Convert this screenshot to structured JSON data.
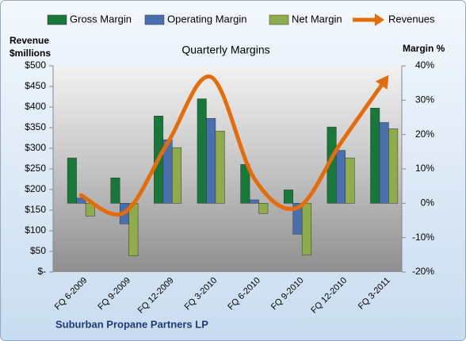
{
  "chart_data": {
    "type": "bar",
    "title": "Quarterly Margins",
    "y_label": [
      "Revenue",
      "$millions"
    ],
    "y2_label": "Margin %",
    "footer": "Suburban Propane Partners LP",
    "categories": [
      "FQ 6-2009",
      "FQ 9-2009",
      "FQ 12-2009",
      "FQ 3-2010",
      "FQ 6-2010",
      "FQ 9-2010",
      "FQ 12-2010",
      "FQ 3-2011"
    ],
    "series": [
      {
        "name": "Gross Margin",
        "color": "#17783a",
        "axis": "y2",
        "values": [
          13.2,
          7.4,
          25.4,
          30.4,
          11.3,
          3.9,
          22.2,
          27.7
        ]
      },
      {
        "name": "Operating Margin",
        "color": "#4a6fae",
        "axis": "y2",
        "values": [
          1.5,
          -6,
          18.5,
          24.7,
          1,
          -9,
          15.4,
          23.5
        ]
      },
      {
        "name": "Net Margin",
        "color": "#8fac4a",
        "axis": "y2",
        "values": [
          -3.7,
          -15.3,
          16.2,
          21,
          -3,
          -15,
          13.2,
          21.7
        ]
      },
      {
        "name": "Revenues",
        "color": "#e46c0a",
        "axis": "y",
        "type": "line",
        "values": [
          186,
          144,
          313,
          473,
          227,
          156,
          313,
          462
        ]
      }
    ],
    "ylim": [
      0,
      500
    ],
    "yticks": [
      {
        "value": 0,
        "label": "$-"
      },
      {
        "value": 50,
        "label": "$50"
      },
      {
        "value": 100,
        "label": "$100"
      },
      {
        "value": 150,
        "label": "$150"
      },
      {
        "value": 200,
        "label": "$200"
      },
      {
        "value": 250,
        "label": "$250"
      },
      {
        "value": 300,
        "label": "$300"
      },
      {
        "value": 350,
        "label": "$350"
      },
      {
        "value": 400,
        "label": "$400"
      },
      {
        "value": 450,
        "label": "$450"
      },
      {
        "value": 500,
        "label": "$500"
      }
    ],
    "y2lim": [
      -20,
      40
    ],
    "y2ticks": [
      {
        "value": -20,
        "label": "-20%"
      },
      {
        "value": -10,
        "label": "-10%"
      },
      {
        "value": 0,
        "label": "0%"
      },
      {
        "value": 10,
        "label": "10%"
      },
      {
        "value": 20,
        "label": "20%"
      },
      {
        "value": 30,
        "label": "30%"
      },
      {
        "value": 40,
        "label": "40%"
      }
    ]
  }
}
